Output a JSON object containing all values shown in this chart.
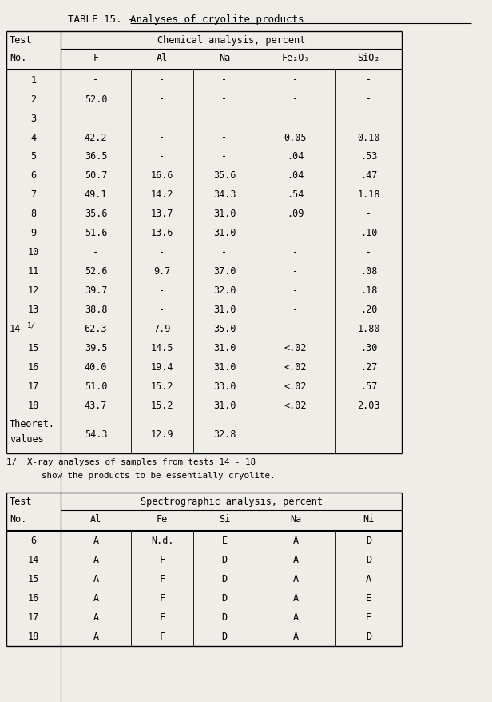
{
  "title_left": "TABLE 15. - ",
  "title_right": "Analyses of cryolite products",
  "table1_col_headers": [
    "F",
    "Al",
    "Na",
    "Fe₂O₃",
    "SiO₂"
  ],
  "table1_data": [
    [
      "1",
      "-",
      "-",
      "-",
      "-",
      "-"
    ],
    [
      "2",
      "52.0",
      "-",
      "-",
      "-",
      "-"
    ],
    [
      "3",
      "-",
      "-",
      "-",
      "-",
      "-"
    ],
    [
      "4",
      "42.2",
      "-",
      "-",
      "0.05",
      "0.10"
    ],
    [
      "5",
      "36.5",
      "-",
      "-",
      ".04",
      ".53"
    ],
    [
      "6",
      "50.7",
      "16.6",
      "35.6",
      ".04",
      ".47"
    ],
    [
      "7",
      "49.1",
      "14.2",
      "34.3",
      ".54",
      "1.18"
    ],
    [
      "8",
      "35.6",
      "13.7",
      "31.0",
      ".09",
      "-"
    ],
    [
      "9",
      "51.6",
      "13.6",
      "31.0",
      "-",
      ".10"
    ],
    [
      "10",
      "-",
      "-",
      "-",
      "-",
      "-"
    ],
    [
      "11",
      "52.6",
      "9.7",
      "37.0",
      "-",
      ".08"
    ],
    [
      "12",
      "39.7",
      "-",
      "32.0",
      "-",
      ".18"
    ],
    [
      "13",
      "38.8",
      "-",
      "31.0",
      "-",
      ".20"
    ],
    [
      "14",
      "62.3",
      "7.9",
      "35.0",
      "-",
      "1.80"
    ],
    [
      "15",
      "39.5",
      "14.5",
      "31.0",
      "<.02",
      ".30"
    ],
    [
      "16",
      "40.0",
      "19.4",
      "31.0",
      "<.02",
      ".27"
    ],
    [
      "17",
      "51.0",
      "15.2",
      "33.0",
      "<.02",
      ".57"
    ],
    [
      "18",
      "43.7",
      "15.2",
      "31.0",
      "<.02",
      "2.03"
    ],
    [
      "Theoret.\nvalues",
      "54.3",
      "12.9",
      "32.8",
      "",
      ""
    ]
  ],
  "footnote_line1": "1/  X-ray analyses of samples from tests 14 - 18",
  "footnote_line2": "    show the products to be essentially cryolite.",
  "table2_col_headers": [
    "Al",
    "Fe",
    "Si",
    "Na",
    "Ni"
  ],
  "table2_data": [
    [
      "6",
      "A",
      "N.d.",
      "E",
      "A",
      "D"
    ],
    [
      "14",
      "A",
      "F",
      "D",
      "A",
      "D"
    ],
    [
      "15",
      "A",
      "F",
      "D",
      "A",
      "A"
    ],
    [
      "16",
      "A",
      "F",
      "D",
      "A",
      "E"
    ],
    [
      "17",
      "A",
      "F",
      "D",
      "A",
      "E"
    ],
    [
      "18",
      "A",
      "F",
      "D",
      "A",
      "D"
    ]
  ],
  "bg_color": "#f0ede8",
  "font_size": 8.5,
  "font_family": "DejaVu Sans Mono"
}
